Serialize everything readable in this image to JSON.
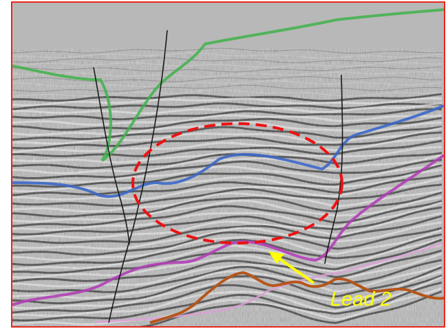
{
  "annotation": {
    "lead_label": "Lead 2"
  },
  "colors": {
    "frame_border": "#e8261d",
    "ellipse": "#ee1111",
    "arrow": "#ffff00",
    "label_text": "#ffff00",
    "horizon_green": "#3fb24a",
    "horizon_blue": "#3b67c8",
    "horizon_magenta": "#b23fb8",
    "horizon_pink": "#d9a0d6",
    "horizon_orange": "#b5561b",
    "fault_line": "#1a1a1a",
    "background_gray": "#b8b8b8"
  },
  "layers": [
    "seismic-reflections",
    "horizon-green",
    "horizon-blue",
    "horizon-magenta",
    "horizon-pink",
    "horizon-orange",
    "fault-lines",
    "lead-ellipse",
    "pointer-arrow"
  ]
}
